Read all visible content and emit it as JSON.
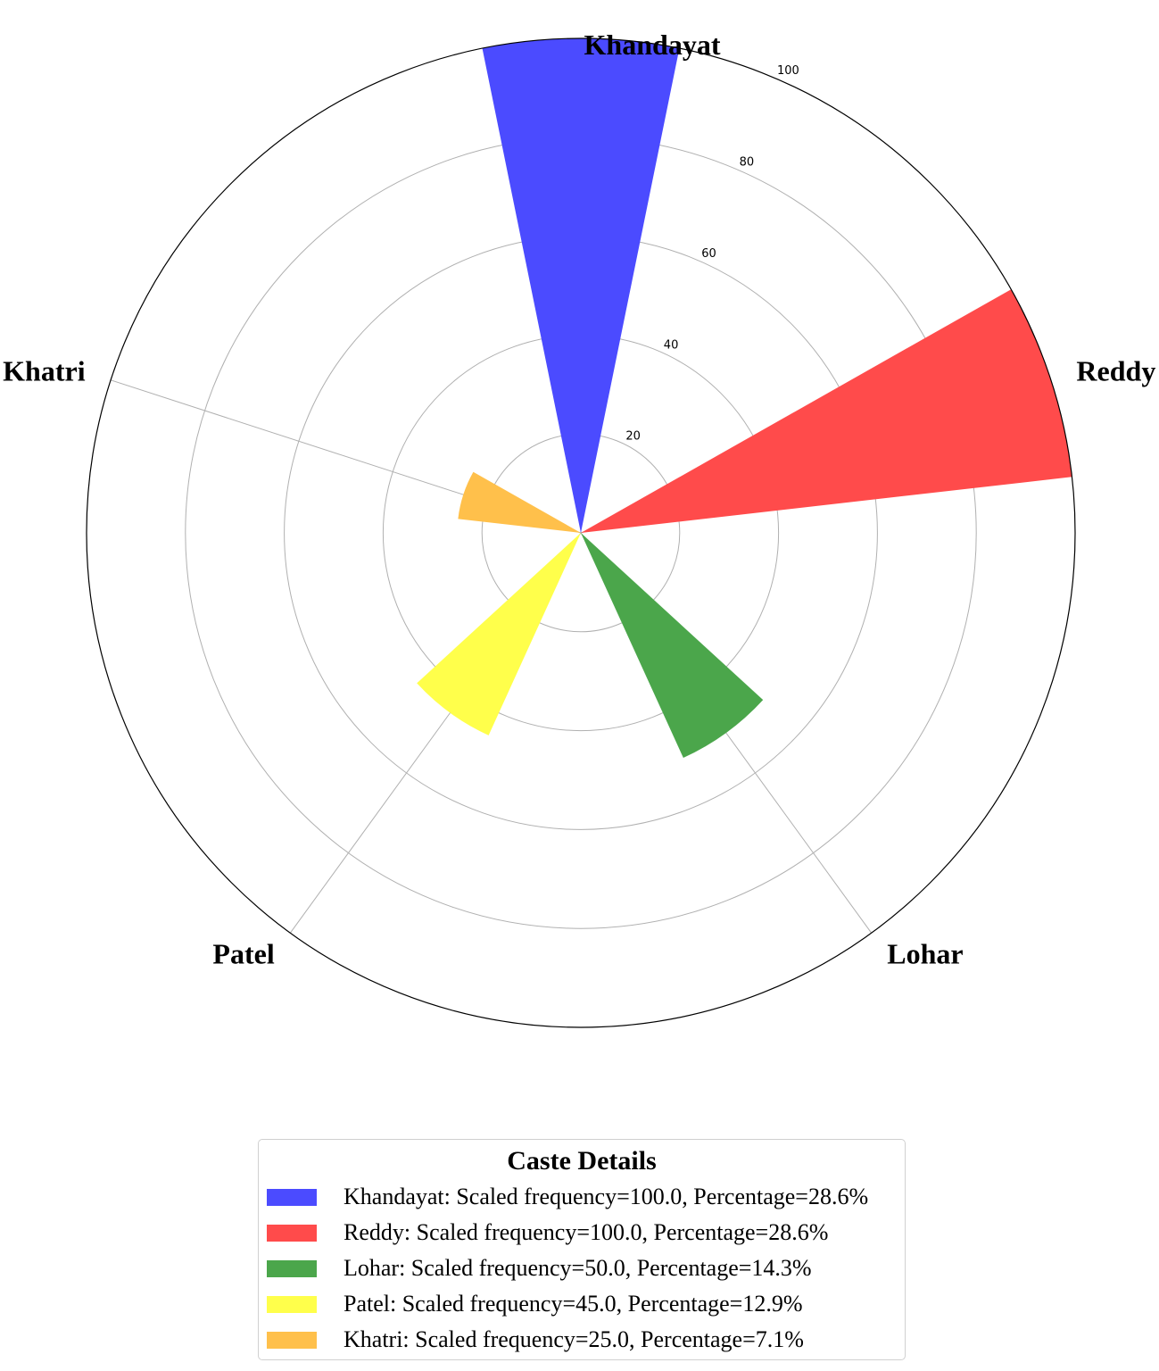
{
  "chart_data": {
    "type": "polar-bar",
    "categories": [
      "Khandayat",
      "Reddy",
      "Lohar",
      "Patel",
      "Khatri"
    ],
    "values": [
      100,
      100,
      50,
      45,
      25
    ],
    "percentages": [
      28.6,
      28.6,
      14.3,
      12.9,
      7.1
    ],
    "colors": [
      "#4b4bff",
      "#ff4b4b",
      "#4ba64b",
      "#ffff4b",
      "#ffc04b"
    ],
    "rlim": [
      0,
      100
    ],
    "rticks": [
      "20",
      "40",
      "60",
      "80",
      "100"
    ],
    "legend": {
      "title": "Caste Details",
      "entries": [
        "Khandayat: Scaled frequency=100.0, Percentage=28.6%",
        "Reddy: Scaled frequency=100.0, Percentage=28.6%",
        "Lohar: Scaled frequency=50.0, Percentage=14.3%",
        "Patel: Scaled frequency=45.0, Percentage=12.9%",
        "Khatri: Scaled frequency=25.0, Percentage=7.1%"
      ],
      "placement": "bottom-center"
    },
    "grid": true
  }
}
